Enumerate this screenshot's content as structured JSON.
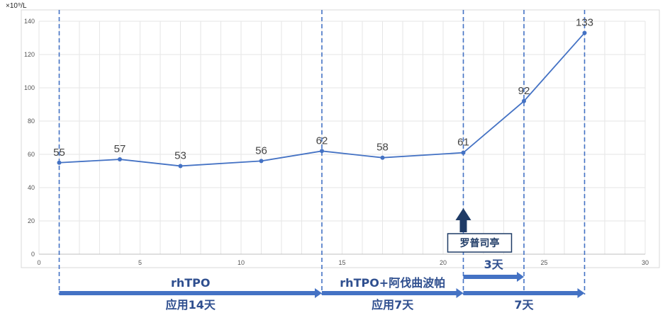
{
  "colors": {
    "series": "#4472c4",
    "dash": "#4472c4",
    "arrow_dark": "#1f3b66",
    "label": "#2f4f8f",
    "grid": "#e6e6e6"
  },
  "chart_data": {
    "type": "line",
    "unit_label": "×10⁹/L",
    "xlim": [
      0,
      30
    ],
    "ylim": [
      0,
      140
    ],
    "xticks": [
      0,
      5,
      10,
      15,
      20,
      25,
      30
    ],
    "yticks": [
      0,
      20,
      40,
      60,
      80,
      100,
      120,
      140
    ],
    "grid": true,
    "series": [
      {
        "x": [
          1,
          4,
          7,
          11,
          14,
          17,
          21,
          24,
          27
        ],
        "y": [
          55,
          57,
          53,
          56,
          62,
          58,
          61,
          92,
          133
        ],
        "labels": [
          "55",
          "57",
          "53",
          "56",
          "62",
          "58",
          "61",
          "92",
          "133"
        ]
      }
    ],
    "vlines": [
      1,
      14,
      21,
      24,
      27
    ],
    "annotations": {
      "drug_box": "罗普司亭",
      "drug_box_x": 21
    },
    "treatment_spans": [
      {
        "from": 1,
        "to": 14,
        "label_above": "rhTPO",
        "label_below": "应用14天"
      },
      {
        "from": 14,
        "to": 21,
        "label_above": "rhTPO+阿伐曲波帕",
        "label_below": "应用7天"
      },
      {
        "from": 21,
        "to": 24,
        "label_above": "3天",
        "label_below": ""
      },
      {
        "from": 21,
        "to": 27,
        "label_above": "",
        "label_below": "7天"
      }
    ]
  }
}
